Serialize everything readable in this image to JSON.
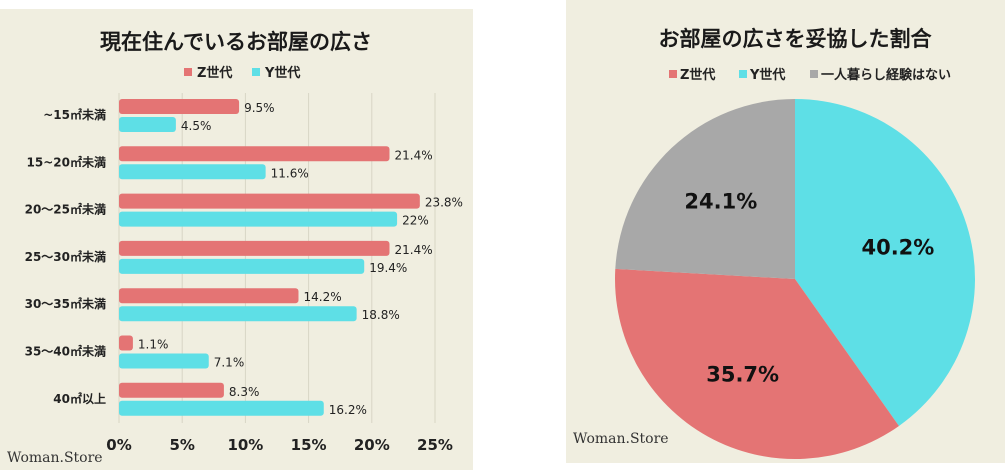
{
  "colors": {
    "z": "#e47474",
    "y": "#5edfe6",
    "other": "#a8a8a8",
    "grid": "#d8d5c5"
  },
  "brand": "Woman.Store",
  "chart_data": [
    {
      "type": "bar",
      "orientation": "horizontal",
      "title": "現在住んでいるお部屋の広さ",
      "categories": [
        "~15㎡未満",
        "15~20㎡未満",
        "20〜25㎡未満",
        "25〜30㎡未満",
        "30〜35㎡未満",
        "35〜40㎡未満",
        "40㎡以上"
      ],
      "series": [
        {
          "name": "Z世代",
          "values": [
            9.5,
            21.4,
            23.8,
            21.4,
            14.2,
            1.1,
            8.3
          ],
          "labels": [
            "9.5%",
            "21.4%",
            "23.8%",
            "21.4%",
            "14.2%",
            "1.1%",
            "8.3%"
          ]
        },
        {
          "name": "Y世代",
          "values": [
            4.5,
            11.6,
            22,
            19.4,
            18.8,
            7.1,
            16.2
          ],
          "labels": [
            "4.5%",
            "11.6%",
            "22%",
            "19.4%",
            "18.8%",
            "7.1%",
            "16.2%"
          ]
        }
      ],
      "xlim": [
        0,
        25
      ],
      "xticks": [
        "0%",
        "5%",
        "10%",
        "15%",
        "20%",
        "25%"
      ],
      "legend": "top-center",
      "grid": true
    },
    {
      "type": "pie",
      "title": "お部屋の広さを妥協した割合",
      "slices": [
        {
          "name": "Y世代",
          "value": 40.2,
          "label": "40.2%"
        },
        {
          "name": "Z世代",
          "value": 35.7,
          "label": "35.7%"
        },
        {
          "name": "一人暮らし経験はない",
          "value": 24.1,
          "label": "24.1%"
        }
      ],
      "legend_order": [
        "Z世代",
        "Y世代",
        "一人暮らし経験はない"
      ],
      "legend": "top-center"
    }
  ]
}
